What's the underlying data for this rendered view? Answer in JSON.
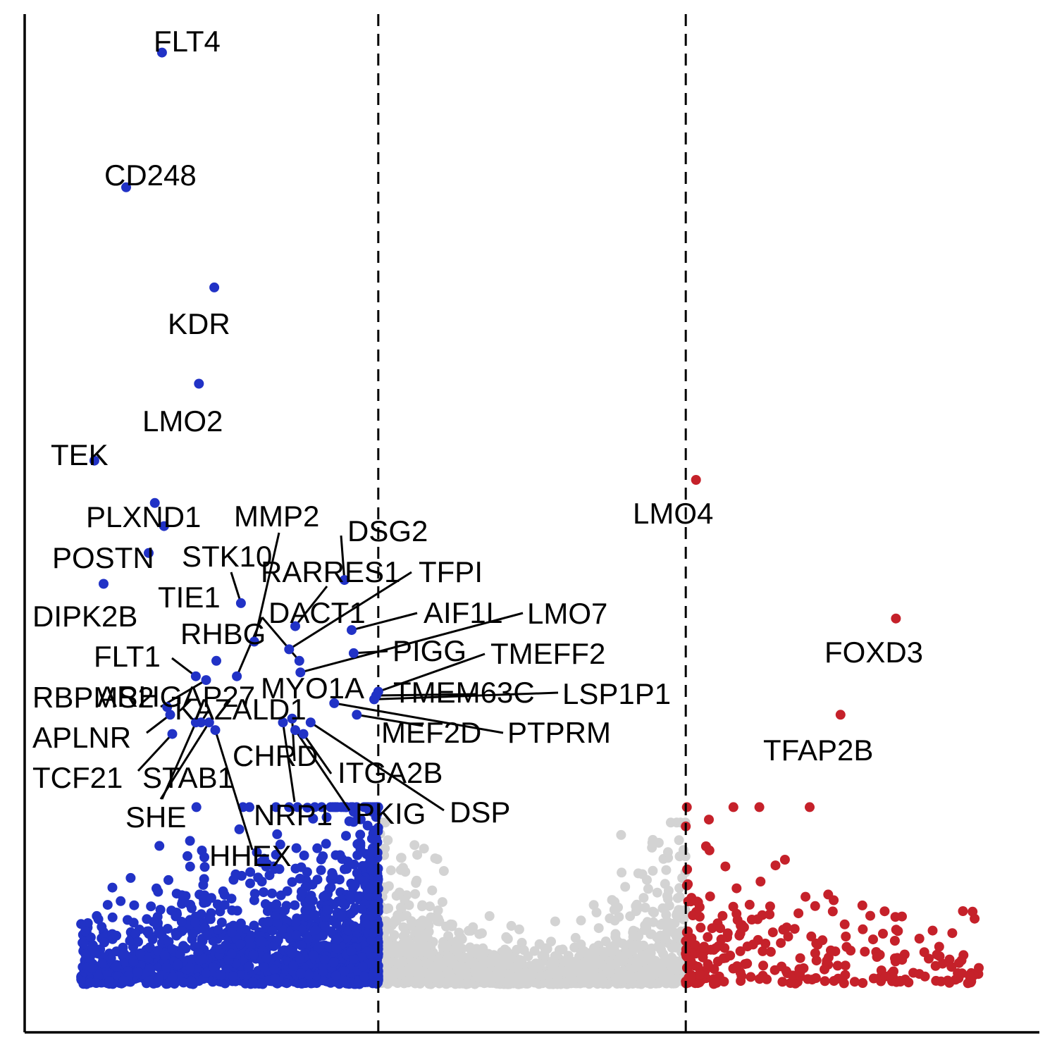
{
  "chart_data": {
    "type": "scatter",
    "title": "",
    "xlabel": "",
    "ylabel": "",
    "xlim": [
      -4.2,
      5.7
    ],
    "ylim": [
      -1.25,
      25.2
    ],
    "thresholds": [
      -0.75,
      2.25
    ],
    "colors": {
      "down": "#2132c6",
      "not_significant": "#d3d3d3",
      "up": "#c5212a"
    },
    "labeled_points": [
      {
        "gene": "FLT4",
        "x": -2.86,
        "y": 24.2,
        "group": "down"
      },
      {
        "gene": "CD248",
        "x": -3.21,
        "y": 20.7,
        "group": "down"
      },
      {
        "gene": "KDR",
        "x": -2.35,
        "y": 18.1,
        "group": "down"
      },
      {
        "gene": "LMO2",
        "x": -2.5,
        "y": 15.6,
        "group": "down"
      },
      {
        "gene": "TEK",
        "x": -3.52,
        "y": 13.6,
        "group": "down"
      },
      {
        "gene": "PLXND1",
        "x": -2.93,
        "y": 12.5,
        "group": "down"
      },
      {
        "gene": "POSTN",
        "x": -2.84,
        "y": 11.9,
        "group": "down"
      },
      {
        "gene": "STK10",
        "x": -2.09,
        "y": 9.9,
        "group": "down"
      },
      {
        "gene": "TIE1",
        "x": -2.99,
        "y": 11.2,
        "group": "down"
      },
      {
        "gene": "DIPK2B",
        "x": -3.43,
        "y": 10.4,
        "group": "down"
      },
      {
        "gene": "RHBG",
        "x": -2.33,
        "y": 8.4,
        "group": "down"
      },
      {
        "gene": "MMP2",
        "x": -1.96,
        "y": 8.9,
        "group": "down"
      },
      {
        "gene": "DSG2",
        "x": -1.08,
        "y": 10.5,
        "group": "down"
      },
      {
        "gene": "RARRES1",
        "x": -1.56,
        "y": 9.3,
        "group": "down"
      },
      {
        "gene": "TFPI",
        "x": -1.62,
        "y": 8.7,
        "group": "down"
      },
      {
        "gene": "DACT1",
        "x": -1.52,
        "y": 8.4,
        "group": "down"
      },
      {
        "gene": "AIF1L",
        "x": -1.01,
        "y": 9.2,
        "group": "down"
      },
      {
        "gene": "LMO7",
        "x": -1.51,
        "y": 8.1,
        "group": "down"
      },
      {
        "gene": "PIGG",
        "x": -0.99,
        "y": 8.6,
        "group": "down"
      },
      {
        "gene": "TMEFF2",
        "x": -0.75,
        "y": 7.6,
        "group": "down"
      },
      {
        "gene": "FLT1",
        "x": -2.53,
        "y": 8.0,
        "group": "down"
      },
      {
        "gene": "ARHGAP27",
        "x": -2.43,
        "y": 7.9,
        "group": "down"
      },
      {
        "gene": "MYO1A",
        "x": -2.13,
        "y": 8.0,
        "group": "down"
      },
      {
        "gene": "TMEM63C",
        "x": -0.77,
        "y": 7.5,
        "group": "down"
      },
      {
        "gene": "LSP1P1",
        "x": -0.79,
        "y": 7.4,
        "group": "down"
      },
      {
        "gene": "RBPMS2",
        "x": -2.81,
        "y": 7.2,
        "group": "down"
      },
      {
        "gene": "KAZALD1",
        "x": -2.48,
        "y": 6.8,
        "group": "down"
      },
      {
        "gene": "MEF2D",
        "x": -0.96,
        "y": 7.0,
        "group": "down"
      },
      {
        "gene": "PTPRM",
        "x": -1.18,
        "y": 7.3,
        "group": "down"
      },
      {
        "gene": "APLNR",
        "x": -2.78,
        "y": 7.0,
        "group": "down"
      },
      {
        "gene": "CHRD",
        "x": -1.59,
        "y": 6.9,
        "group": "down"
      },
      {
        "gene": "ITGA2B",
        "x": -1.48,
        "y": 6.5,
        "group": "down"
      },
      {
        "gene": "DSP",
        "x": -1.41,
        "y": 6.8,
        "group": "down"
      },
      {
        "gene": "TCF21",
        "x": -2.76,
        "y": 6.5,
        "group": "down"
      },
      {
        "gene": "STAB1",
        "x": -2.4,
        "y": 6.8,
        "group": "down"
      },
      {
        "gene": "SHE",
        "x": -2.53,
        "y": 6.8,
        "group": "down"
      },
      {
        "gene": "NRP1",
        "x": -1.68,
        "y": 6.8,
        "group": "down"
      },
      {
        "gene": "PKIG",
        "x": -1.56,
        "y": 6.6,
        "group": "down"
      },
      {
        "gene": "HHEX",
        "x": -2.34,
        "y": 6.6,
        "group": "down"
      },
      {
        "gene": "LMO4",
        "x": 2.35,
        "y": 13.1,
        "group": "up"
      },
      {
        "gene": "FOXD3",
        "x": 4.3,
        "y": 9.5,
        "group": "up"
      },
      {
        "gene": "TFAP2B",
        "x": 3.76,
        "y": 7.0,
        "group": "up"
      }
    ],
    "background_points": {
      "down": {
        "n": 1500,
        "x_range": [
          -3.65,
          -0.75
        ],
        "y_max": 4.6
      },
      "not_significant": {
        "n": 1500,
        "x_range": [
          -0.75,
          2.25
        ],
        "y_max": 4.2
      },
      "up": {
        "n": 260,
        "x_range": [
          2.25,
          5.15
        ],
        "y_max": 4.6
      }
    },
    "legend": "none",
    "grid": false
  }
}
